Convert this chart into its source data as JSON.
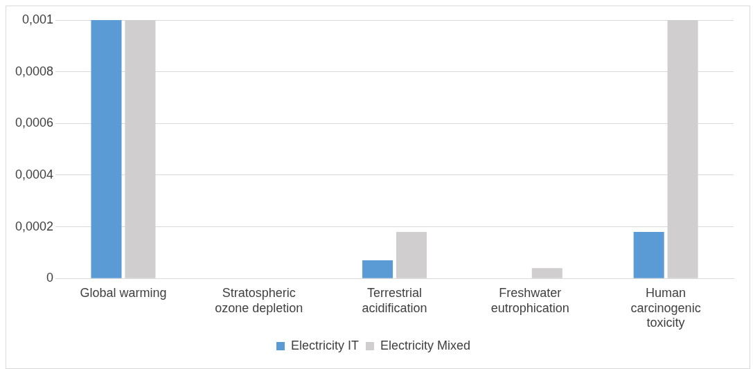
{
  "chart_data": {
    "type": "bar",
    "categories": [
      "Global warming",
      "Stratospheric ozone depletion",
      "Terrestrial acidification",
      "Freshwater eutrophication",
      "Human carcinogenic toxicity"
    ],
    "series": [
      {
        "name": "Electricity IT",
        "color": "#5b9bd5",
        "values": [
          0.001,
          0,
          7e-05,
          0,
          0.00018
        ]
      },
      {
        "name": "Electricity Mixed",
        "color": "#d0cece",
        "values": [
          0.001,
          0,
          0.00018,
          4e-05,
          0.001
        ]
      }
    ],
    "ylim": [
      0,
      0.001
    ],
    "yticks": [
      {
        "value": 0,
        "label": "0"
      },
      {
        "value": 0.0002,
        "label": "0,0002"
      },
      {
        "value": 0.0004,
        "label": "0,0004"
      },
      {
        "value": 0.0006,
        "label": "0,0006"
      },
      {
        "value": 0.0008,
        "label": "0,0008"
      },
      {
        "value": 0.001,
        "label": "0,001"
      }
    ],
    "grid": "y",
    "legend": "bottom"
  }
}
